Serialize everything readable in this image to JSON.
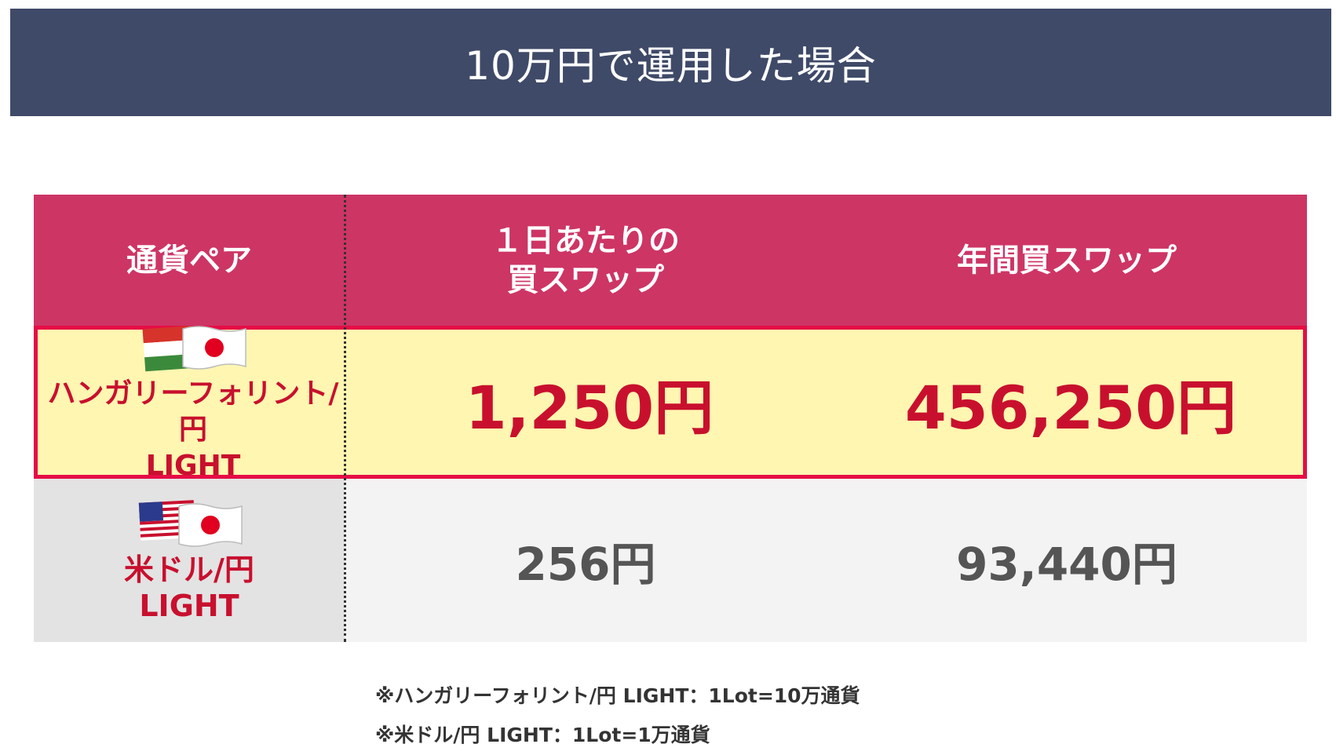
{
  "title": "10万円で運用した場合",
  "table": {
    "headers": {
      "pair": "通貨ペア",
      "daily_line1": "１日あたりの",
      "daily_line2": "買スワップ",
      "yearly": "年間買スワップ"
    },
    "rows": [
      {
        "pair_line1": "ハンガリーフォリント/円",
        "pair_line2": "LIGHT",
        "flags": [
          "hungary-flag",
          "japan-flag"
        ],
        "daily": "1,250円",
        "yearly": "456,250円"
      },
      {
        "pair_line1": "米ドル/円",
        "pair_line2": "LIGHT",
        "flags": [
          "usa-flag",
          "japan-flag"
        ],
        "daily": "256円",
        "yearly": "93,440円"
      }
    ]
  },
  "notes": [
    "※ハンガリーフォリント/円 LIGHT：1Lot=10万通貨",
    "※米ドル/円 LIGHT：1Lot=1万通貨"
  ],
  "colors": {
    "title_bg": "#3f4a68",
    "header_bg": "#cd3565",
    "highlight_bg": "#fff6b1",
    "highlight_border": "#e60c45",
    "accent_red": "#c8102e"
  }
}
